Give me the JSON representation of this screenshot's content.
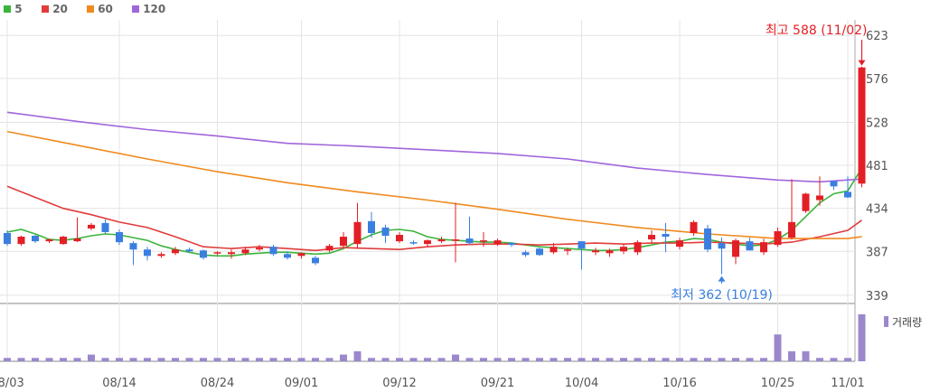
{
  "legend": [
    {
      "label": "5",
      "color": "#3cb43c"
    },
    {
      "label": "20",
      "color": "#e03c3c"
    },
    {
      "label": "60",
      "color": "#f08a1e"
    },
    {
      "label": "120",
      "color": "#a066dc"
    }
  ],
  "colors": {
    "up": "#e31f26",
    "down": "#3a7fe0",
    "volume": "#9b88cc",
    "grid": "#e4e4e4"
  },
  "chart_data": {
    "type": "candlestick",
    "y_ticks": [
      623,
      576,
      528,
      481,
      434,
      387,
      339
    ],
    "ylim": [
      330,
      640
    ],
    "x_ticks": [
      {
        "label": "08/03",
        "index": 0
      },
      {
        "label": "08/14",
        "index": 8
      },
      {
        "label": "08/24",
        "index": 15
      },
      {
        "label": "09/01",
        "index": 21
      },
      {
        "label": "09/12",
        "index": 28
      },
      {
        "label": "09/21",
        "index": 35
      },
      {
        "label": "10/04",
        "index": 41
      },
      {
        "label": "10/16",
        "index": 48
      },
      {
        "label": "10/25",
        "index": 55
      },
      {
        "label": "11/01",
        "index": 60
      }
    ],
    "annotation_high": {
      "text": "최고 588 (11/02)",
      "index": 61,
      "value": 588
    },
    "annotation_low": {
      "text": "최저 362 (10/19)",
      "index": 51,
      "value": 362
    },
    "volume_label": "거래량",
    "candles": [
      [
        407,
        395,
        410,
        393
      ],
      [
        395,
        403,
        404,
        393
      ],
      [
        404,
        398,
        405,
        396
      ],
      [
        398,
        400,
        401,
        396
      ],
      [
        395,
        403,
        404,
        394
      ],
      [
        398,
        401,
        424,
        397
      ],
      [
        412,
        416,
        418,
        410
      ],
      [
        418,
        408,
        422,
        406
      ],
      [
        408,
        397,
        411,
        394
      ],
      [
        396,
        389,
        398,
        372
      ],
      [
        389,
        382,
        392,
        377
      ],
      [
        382,
        384,
        386,
        380
      ],
      [
        385,
        389,
        392,
        383
      ],
      [
        389,
        387,
        391,
        385
      ],
      [
        388,
        380,
        389,
        378
      ],
      [
        385,
        386,
        387,
        383
      ],
      [
        384,
        386,
        389,
        379
      ],
      [
        385,
        389,
        392,
        383
      ],
      [
        389,
        391,
        394,
        387
      ],
      [
        392,
        384,
        394,
        382
      ],
      [
        384,
        380,
        387,
        378
      ],
      [
        382,
        385,
        386,
        379
      ],
      [
        380,
        374,
        382,
        372
      ],
      [
        388,
        393,
        395,
        386
      ],
      [
        393,
        403,
        408,
        391
      ],
      [
        395,
        419,
        440,
        390
      ],
      [
        420,
        407,
        430,
        402
      ],
      [
        413,
        404,
        416,
        396
      ],
      [
        398,
        405,
        408,
        396
      ],
      [
        397,
        396,
        399,
        394
      ],
      [
        395,
        399,
        400,
        392
      ],
      [
        398,
        400,
        403,
        396
      ],
      [
        399,
        400,
        440,
        375
      ],
      [
        401,
        396,
        425,
        394
      ],
      [
        399,
        399,
        408,
        392
      ],
      [
        395,
        399,
        401,
        393
      ],
      [
        396,
        394,
        397,
        392
      ],
      [
        386,
        383,
        388,
        381
      ],
      [
        390,
        383,
        391,
        382
      ],
      [
        386,
        392,
        396,
        384
      ],
      [
        389,
        389,
        391,
        383
      ],
      [
        398,
        390,
        397,
        367
      ],
      [
        386,
        388,
        391,
        383
      ],
      [
        385,
        388,
        390,
        381
      ],
      [
        387,
        392,
        395,
        384
      ],
      [
        386,
        397,
        399,
        383
      ],
      [
        400,
        405,
        410,
        396
      ],
      [
        406,
        403,
        418,
        386
      ],
      [
        392,
        399,
        402,
        389
      ],
      [
        407,
        419,
        421,
        404
      ],
      [
        412,
        389,
        416,
        386
      ],
      [
        396,
        390,
        402,
        362
      ],
      [
        381,
        399,
        401,
        373
      ],
      [
        398,
        388,
        402,
        388
      ],
      [
        386,
        397,
        401,
        383
      ],
      [
        394,
        409,
        413,
        392
      ],
      [
        402,
        419,
        466,
        400
      ],
      [
        431,
        450,
        451,
        429
      ],
      [
        443,
        448,
        469,
        437
      ],
      [
        464,
        458,
        462,
        454
      ],
      [
        452,
        446,
        469,
        445
      ],
      [
        461,
        588,
        589,
        457
      ]
    ],
    "volume": [
      1,
      1,
      1,
      1,
      1,
      1,
      2,
      1,
      1,
      1,
      1,
      1,
      1,
      1,
      1,
      1,
      1,
      1,
      1,
      1,
      1,
      1,
      1,
      1,
      2,
      3,
      1,
      1,
      1,
      1,
      1,
      1,
      2,
      1,
      1,
      1,
      1,
      1,
      1,
      1,
      1,
      1,
      1,
      1,
      1,
      1,
      1,
      1,
      1,
      1,
      1,
      1,
      1,
      1,
      1,
      8,
      3,
      3,
      1,
      1,
      1,
      14
    ],
    "series": [
      {
        "name": "5",
        "color": "#3cb43c",
        "values": [
          [
            0,
            408
          ],
          [
            1,
            411
          ],
          [
            2,
            406
          ],
          [
            3,
            400
          ],
          [
            4,
            399
          ],
          [
            5,
            401
          ],
          [
            6,
            404
          ],
          [
            7,
            406
          ],
          [
            8,
            405
          ],
          [
            9,
            402
          ],
          [
            10,
            399
          ],
          [
            11,
            393
          ],
          [
            12,
            389
          ],
          [
            13,
            386
          ],
          [
            14,
            383
          ],
          [
            15,
            382
          ],
          [
            16,
            382
          ],
          [
            17,
            384
          ],
          [
            18,
            385
          ],
          [
            19,
            386
          ],
          [
            20,
            386
          ],
          [
            21,
            385
          ],
          [
            22,
            384
          ],
          [
            23,
            385
          ],
          [
            24,
            390
          ],
          [
            25,
            398
          ],
          [
            26,
            405
          ],
          [
            27,
            410
          ],
          [
            28,
            411
          ],
          [
            29,
            409
          ],
          [
            30,
            403
          ],
          [
            31,
            400
          ],
          [
            32,
            399
          ],
          [
            33,
            398
          ],
          [
            34,
            397
          ],
          [
            35,
            397
          ],
          [
            36,
            396
          ],
          [
            37,
            394
          ],
          [
            38,
            392
          ],
          [
            39,
            391
          ],
          [
            40,
            390
          ],
          [
            41,
            389
          ],
          [
            42,
            388
          ],
          [
            43,
            388
          ],
          [
            44,
            389
          ],
          [
            45,
            391
          ],
          [
            46,
            394
          ],
          [
            47,
            397
          ],
          [
            48,
            398
          ],
          [
            49,
            401
          ],
          [
            50,
            400
          ],
          [
            51,
            397
          ],
          [
            52,
            395
          ],
          [
            53,
            393
          ],
          [
            54,
            394
          ],
          [
            55,
            400
          ],
          [
            56,
            410
          ],
          [
            57,
            425
          ],
          [
            58,
            440
          ],
          [
            59,
            450
          ],
          [
            60,
            453
          ],
          [
            61,
            478
          ]
        ]
      },
      {
        "name": "20",
        "color": "#e03c3c",
        "values": [
          [
            0,
            458
          ],
          [
            2,
            446
          ],
          [
            4,
            434
          ],
          [
            6,
            427
          ],
          [
            8,
            419
          ],
          [
            10,
            413
          ],
          [
            12,
            403
          ],
          [
            14,
            392
          ],
          [
            16,
            390
          ],
          [
            18,
            392
          ],
          [
            20,
            390
          ],
          [
            22,
            388
          ],
          [
            24,
            391
          ],
          [
            26,
            390
          ],
          [
            28,
            389
          ],
          [
            30,
            392
          ],
          [
            32,
            394
          ],
          [
            34,
            395
          ],
          [
            36,
            395
          ],
          [
            38,
            394
          ],
          [
            40,
            395
          ],
          [
            42,
            396
          ],
          [
            44,
            395
          ],
          [
            46,
            396
          ],
          [
            48,
            396
          ],
          [
            50,
            397
          ],
          [
            52,
            396
          ],
          [
            54,
            395
          ],
          [
            56,
            397
          ],
          [
            58,
            403
          ],
          [
            60,
            410
          ],
          [
            61,
            421
          ]
        ]
      },
      {
        "name": "60",
        "color": "#f08a1e",
        "values": [
          [
            0,
            518
          ],
          [
            5,
            503
          ],
          [
            10,
            488
          ],
          [
            15,
            474
          ],
          [
            20,
            462
          ],
          [
            25,
            452
          ],
          [
            30,
            443
          ],
          [
            35,
            433
          ],
          [
            40,
            422
          ],
          [
            45,
            413
          ],
          [
            50,
            406
          ],
          [
            55,
            401
          ],
          [
            60,
            401
          ],
          [
            61,
            403
          ]
        ]
      },
      {
        "name": "120",
        "color": "#a066dc",
        "values": [
          [
            0,
            539
          ],
          [
            5,
            529
          ],
          [
            10,
            520
          ],
          [
            15,
            513
          ],
          [
            20,
            505
          ],
          [
            25,
            502
          ],
          [
            30,
            498
          ],
          [
            35,
            494
          ],
          [
            40,
            488
          ],
          [
            45,
            478
          ],
          [
            50,
            471
          ],
          [
            55,
            465
          ],
          [
            58,
            463
          ],
          [
            61,
            466
          ]
        ]
      }
    ]
  }
}
